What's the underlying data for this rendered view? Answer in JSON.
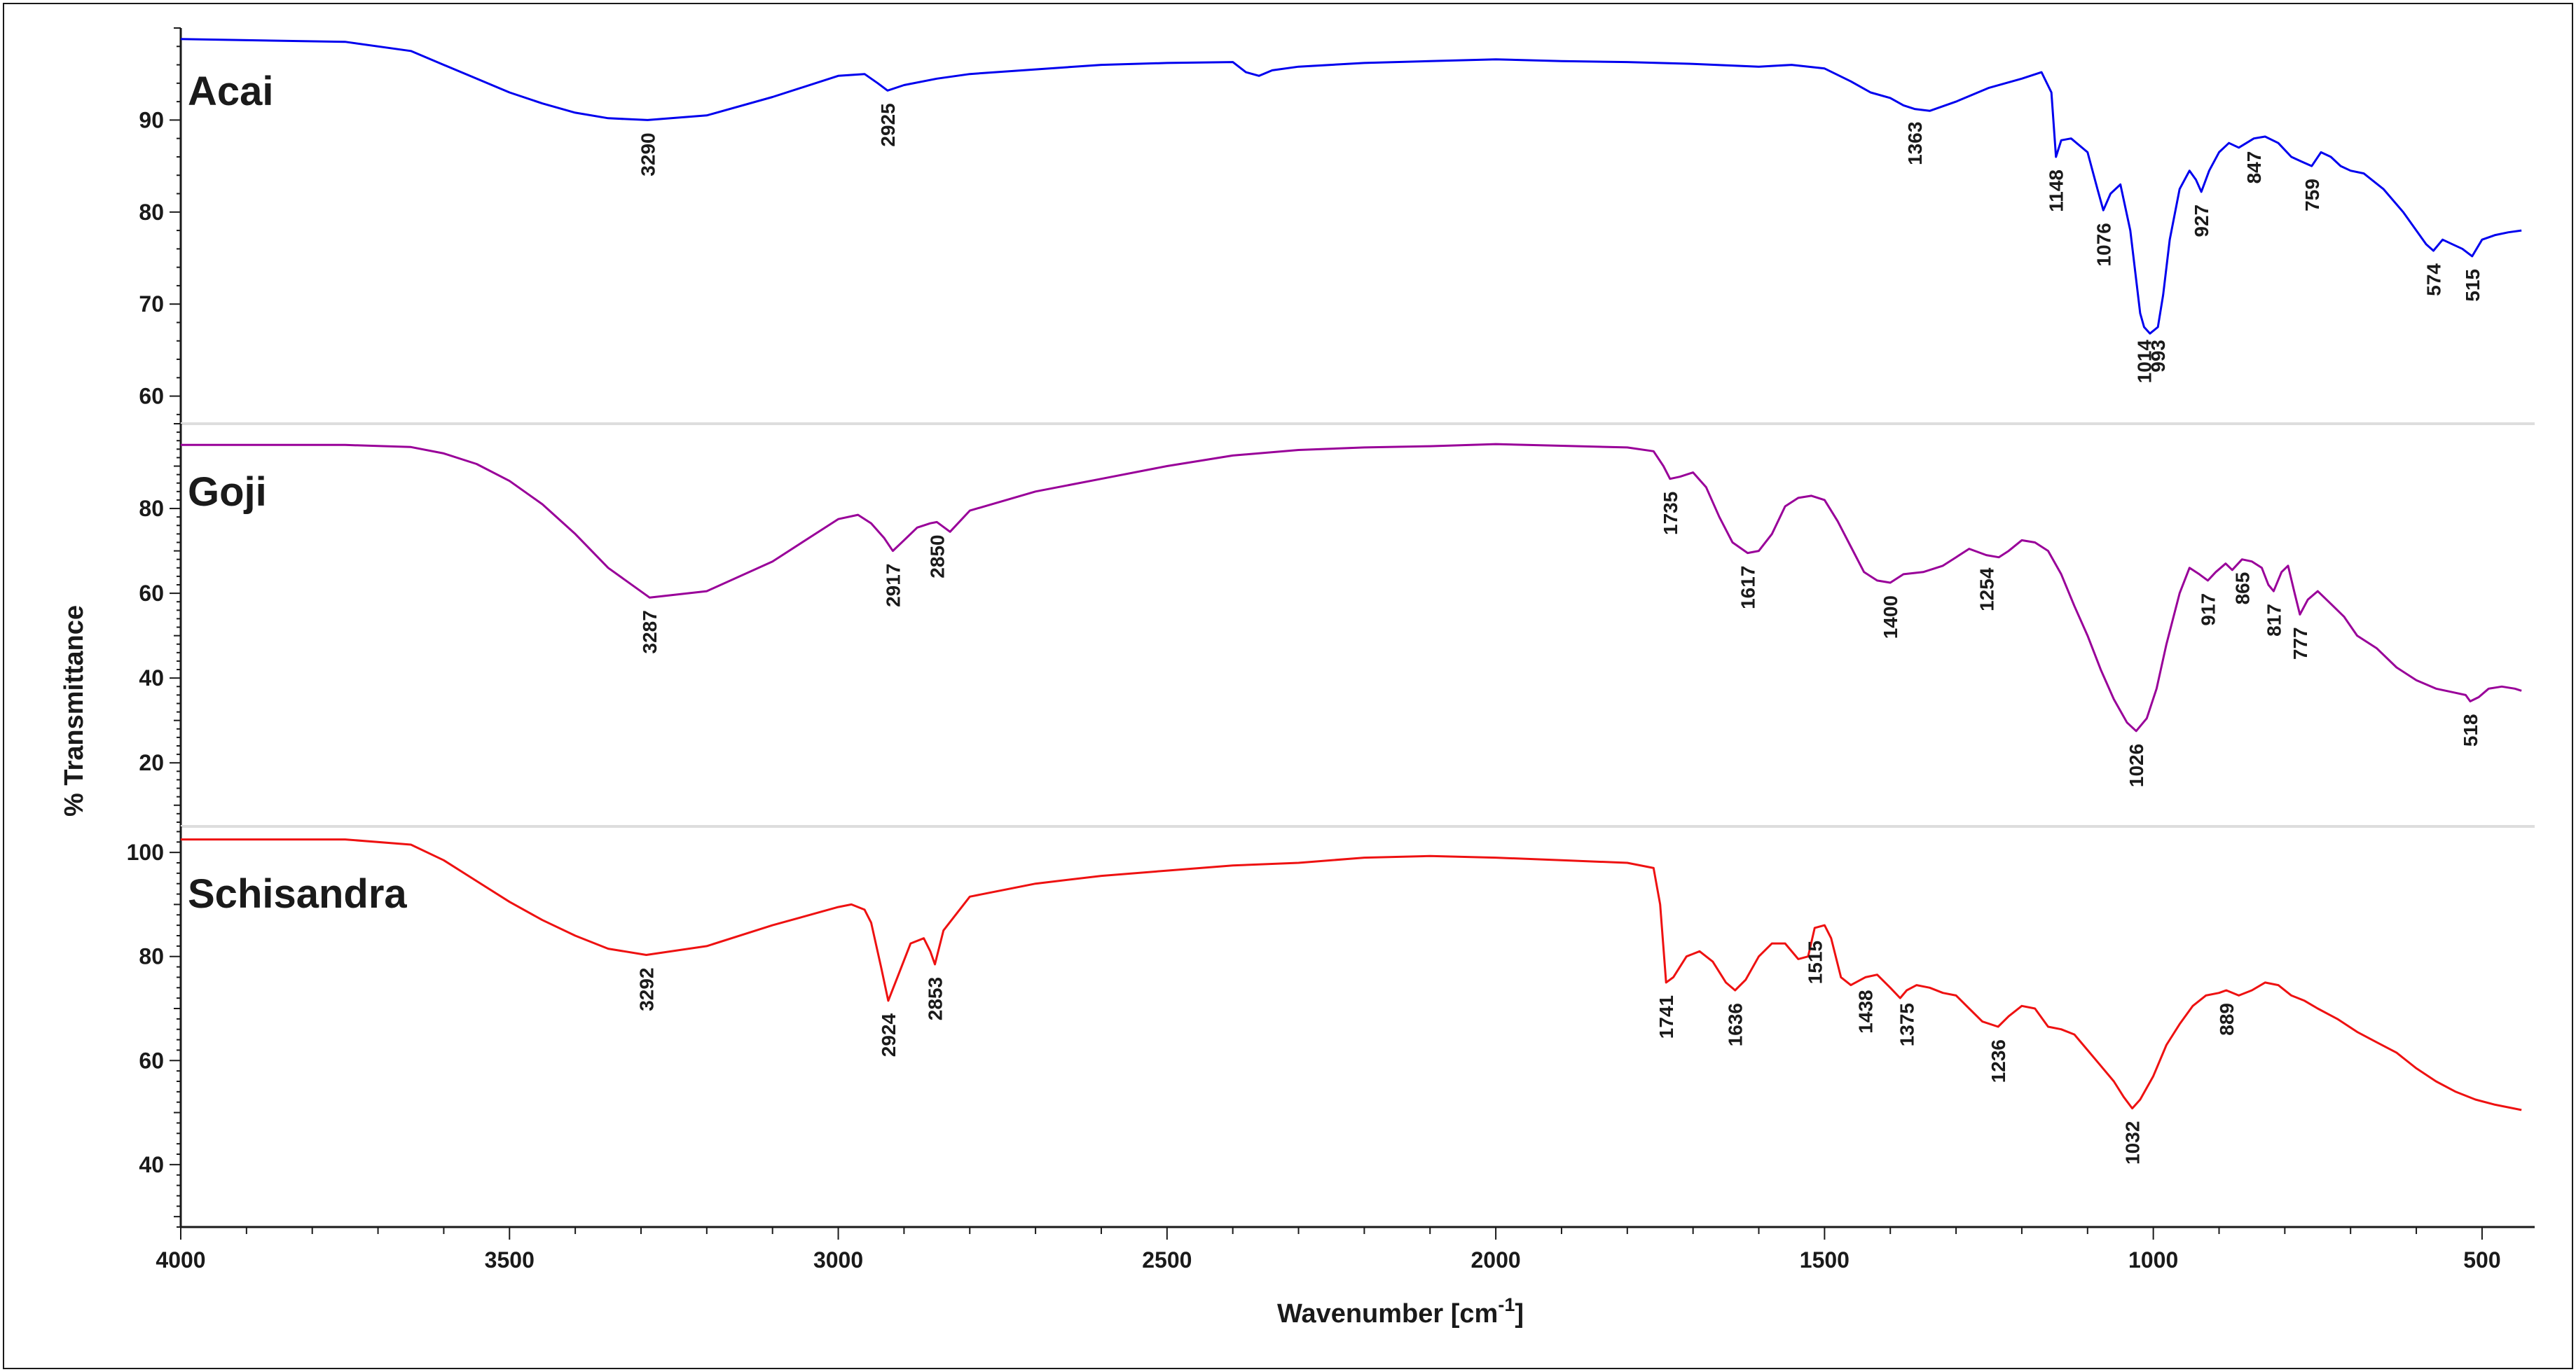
{
  "chart_data": {
    "type": "line",
    "xlabel": "Wavenumber [cm",
    "xlabel_sup": "-1",
    "xlabel_end": "]",
    "ylabel": "% Transmittance",
    "x_reversed": true,
    "xlim": [
      4000,
      420
    ],
    "x_ticks": [
      4000,
      3500,
      3000,
      2500,
      2000,
      1500,
      1000,
      500
    ],
    "grid": false,
    "series": [
      {
        "name": "Acai",
        "color": "#0000ee",
        "ylim": [
          57,
          100
        ],
        "y_ticks": [
          60,
          70,
          80,
          90
        ],
        "x": [
          4000,
          3750,
          3650,
          3600,
          3550,
          3500,
          3450,
          3400,
          3350,
          3290,
          3200,
          3100,
          3000,
          2960,
          2940,
          2925,
          2900,
          2850,
          2800,
          2700,
          2600,
          2500,
          2400,
          2380,
          2360,
          2340,
          2300,
          2200,
          2100,
          2000,
          1900,
          1800,
          1700,
          1600,
          1550,
          1500,
          1460,
          1430,
          1400,
          1380,
          1363,
          1340,
          1300,
          1250,
          1200,
          1170,
          1155,
          1148,
          1140,
          1125,
          1100,
          1085,
          1076,
          1065,
          1050,
          1035,
          1020,
          1014,
          1005,
          993,
          985,
          975,
          960,
          945,
          935,
          927,
          915,
          900,
          885,
          870,
          847,
          830,
          810,
          790,
          775,
          759,
          745,
          730,
          715,
          700,
          680,
          650,
          620,
          600,
          585,
          574,
          560,
          545,
          530,
          515,
          500,
          480,
          460,
          440
        ],
        "values": [
          98.8,
          98.5,
          97.5,
          96.0,
          94.5,
          93.0,
          91.8,
          90.8,
          90.2,
          90.0,
          90.5,
          92.5,
          94.8,
          95.0,
          94.0,
          93.2,
          93.8,
          94.5,
          95.0,
          95.5,
          96.0,
          96.2,
          96.3,
          95.2,
          94.8,
          95.4,
          95.8,
          96.2,
          96.4,
          96.6,
          96.4,
          96.3,
          96.1,
          95.8,
          96.0,
          95.6,
          94.2,
          93.0,
          92.4,
          91.6,
          91.2,
          91.0,
          92.0,
          93.5,
          94.5,
          95.2,
          93.0,
          86.0,
          87.8,
          88.0,
          86.5,
          82.5,
          80.2,
          82.0,
          83.0,
          78.0,
          69.0,
          67.5,
          66.8,
          67.5,
          71.0,
          77.0,
          82.5,
          84.5,
          83.5,
          82.2,
          84.5,
          86.5,
          87.5,
          87.0,
          88.0,
          88.2,
          87.5,
          86.0,
          85.5,
          85.0,
          86.5,
          86.0,
          85.0,
          84.5,
          84.2,
          82.5,
          80.0,
          78.0,
          76.5,
          75.8,
          77.0,
          76.5,
          76.0,
          75.2,
          77.0,
          77.5,
          77.8,
          78.0
        ]
      },
      {
        "name": "Goji",
        "color": "#990099",
        "ylim": [
          5,
          100
        ],
        "y_ticks": [
          20,
          40,
          60,
          80
        ],
        "x": [
          4000,
          3750,
          3650,
          3600,
          3550,
          3500,
          3450,
          3400,
          3350,
          3287,
          3200,
          3100,
          3000,
          2970,
          2950,
          2930,
          2917,
          2900,
          2880,
          2860,
          2850,
          2830,
          2800,
          2700,
          2600,
          2500,
          2400,
          2300,
          2200,
          2100,
          2000,
          1900,
          1800,
          1760,
          1745,
          1735,
          1720,
          1700,
          1680,
          1660,
          1640,
          1617,
          1600,
          1580,
          1560,
          1540,
          1520,
          1500,
          1480,
          1460,
          1440,
          1420,
          1400,
          1380,
          1350,
          1320,
          1300,
          1280,
          1254,
          1235,
          1220,
          1200,
          1180,
          1160,
          1140,
          1120,
          1100,
          1080,
          1060,
          1040,
          1026,
          1010,
          995,
          980,
          960,
          945,
          930,
          917,
          905,
          890,
          880,
          865,
          850,
          835,
          825,
          817,
          805,
          795,
          785,
          777,
          765,
          750,
          730,
          710,
          690,
          660,
          630,
          600,
          570,
          540,
          525,
          518,
          505,
          490,
          470,
          450,
          440
        ],
        "values": [
          95.0,
          95.0,
          94.5,
          93.0,
          90.5,
          86.5,
          81.0,
          74.0,
          66.0,
          59.0,
          60.5,
          67.5,
          77.5,
          78.5,
          76.5,
          73.0,
          70.0,
          72.5,
          75.5,
          76.5,
          76.8,
          74.5,
          79.5,
          84.0,
          87.0,
          90.0,
          92.5,
          93.8,
          94.4,
          94.7,
          95.2,
          94.8,
          94.4,
          93.5,
          90.0,
          87.0,
          87.5,
          88.5,
          85.0,
          78.0,
          72.0,
          69.5,
          70.0,
          74.0,
          80.5,
          82.5,
          83.0,
          82.0,
          77.0,
          71.0,
          65.0,
          63.0,
          62.5,
          64.5,
          65.0,
          66.5,
          68.5,
          70.5,
          69.0,
          68.5,
          70.0,
          72.5,
          72.0,
          70.0,
          64.5,
          57.0,
          50.0,
          42.0,
          35.0,
          29.5,
          27.5,
          30.5,
          37.5,
          48.0,
          60.0,
          66.0,
          64.5,
          63.0,
          65.0,
          67.0,
          65.5,
          68.0,
          67.5,
          66.0,
          62.0,
          60.5,
          65.0,
          66.5,
          60.0,
          55.0,
          58.5,
          60.5,
          57.5,
          54.5,
          50.0,
          47.0,
          42.5,
          39.5,
          37.5,
          36.5,
          36.0,
          34.5,
          35.5,
          37.5,
          38.0,
          37.5,
          37.0
        ]
      },
      {
        "name": "Schisandra",
        "color": "#ee1111",
        "ylim": [
          28,
          105
        ],
        "y_ticks": [
          40,
          60,
          80,
          100
        ],
        "x": [
          4000,
          3750,
          3650,
          3600,
          3550,
          3500,
          3450,
          3400,
          3350,
          3292,
          3200,
          3100,
          3000,
          2980,
          2960,
          2950,
          2935,
          2924,
          2910,
          2890,
          2870,
          2860,
          2853,
          2840,
          2800,
          2700,
          2600,
          2500,
          2400,
          2300,
          2200,
          2100,
          2000,
          1900,
          1800,
          1760,
          1750,
          1741,
          1730,
          1710,
          1690,
          1670,
          1650,
          1636,
          1620,
          1600,
          1580,
          1560,
          1540,
          1525,
          1515,
          1500,
          1490,
          1475,
          1460,
          1438,
          1420,
          1400,
          1385,
          1375,
          1360,
          1340,
          1320,
          1300,
          1280,
          1260,
          1236,
          1220,
          1200,
          1180,
          1160,
          1140,
          1120,
          1100,
          1080,
          1060,
          1045,
          1032,
          1020,
          1000,
          980,
          960,
          940,
          920,
          900,
          889,
          870,
          850,
          830,
          810,
          790,
          770,
          750,
          720,
          690,
          660,
          630,
          600,
          570,
          540,
          510,
          480,
          460,
          440
        ],
        "values": [
          102.5,
          102.5,
          101.5,
          98.5,
          94.5,
          90.5,
          87.0,
          84.0,
          81.5,
          80.3,
          82.0,
          86.0,
          89.5,
          90.0,
          89.0,
          86.5,
          78.0,
          71.5,
          76.0,
          82.5,
          83.5,
          81.0,
          78.5,
          85.0,
          91.5,
          94.0,
          95.5,
          96.5,
          97.5,
          98.0,
          99.0,
          99.3,
          99.0,
          98.5,
          98.0,
          97.0,
          90.0,
          75.0,
          76.0,
          80.0,
          81.0,
          79.0,
          75.0,
          73.5,
          75.5,
          80.0,
          82.5,
          82.5,
          79.5,
          80.0,
          85.5,
          86.0,
          83.5,
          76.0,
          74.5,
          76.0,
          76.5,
          74.0,
          72.0,
          73.5,
          74.5,
          74.0,
          73.0,
          72.5,
          70.0,
          67.5,
          66.5,
          68.5,
          70.5,
          70.0,
          66.5,
          66.0,
          65.0,
          62.0,
          59.0,
          56.0,
          53.0,
          50.8,
          52.5,
          57.0,
          63.0,
          67.0,
          70.5,
          72.5,
          73.0,
          73.5,
          72.5,
          73.5,
          75.0,
          74.5,
          72.5,
          71.5,
          70.0,
          68.0,
          65.5,
          63.5,
          61.5,
          58.5,
          56.0,
          54.0,
          52.5,
          51.5,
          51.0,
          50.5
        ]
      }
    ],
    "peak_labels": [
      [
        "3290",
        "2925",
        "1363",
        "1148",
        "1076",
        "1014",
        "993",
        "927",
        "847",
        "759",
        "574",
        "515"
      ],
      [
        "3287",
        "2917",
        "2850",
        "1735",
        "1617",
        "1400",
        "1254",
        "1026",
        "917",
        "865",
        "817",
        "777",
        "518"
      ],
      [
        "3292",
        "2924",
        "2853",
        "1741",
        "1636",
        "1515",
        "1438",
        "1375",
        "1236",
        "1032",
        "889"
      ]
    ]
  }
}
